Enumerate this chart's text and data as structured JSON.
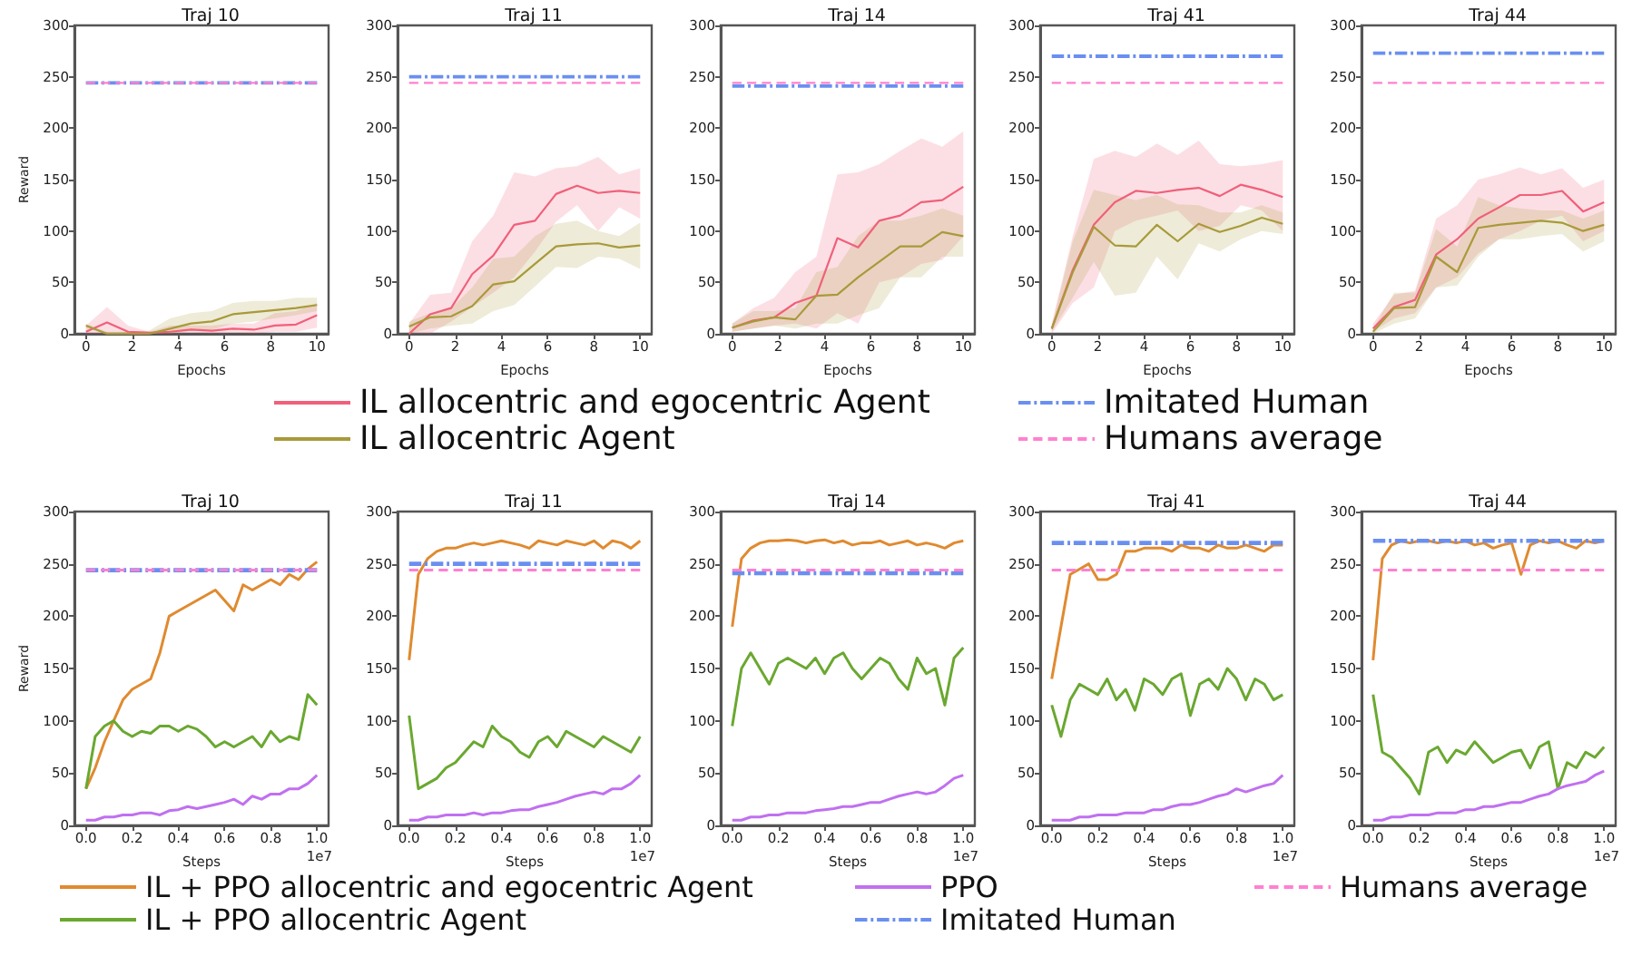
{
  "chart_data": [
    {
      "type": "line",
      "title": "Traj 10",
      "xlabel": "Epochs",
      "ylabel": "Reward",
      "x": [
        0,
        0.91,
        1.82,
        2.73,
        3.64,
        4.55,
        5.45,
        6.36,
        7.27,
        8.18,
        9.09,
        10
      ],
      "xlim": [
        -0.5,
        10.5
      ],
      "xticks": [
        0,
        2,
        4,
        6,
        8,
        10
      ],
      "ylim": [
        0,
        300
      ],
      "yticks": [
        0,
        50,
        100,
        150,
        200,
        250,
        300
      ],
      "grid": false,
      "marker": "none",
      "series": [
        {
          "color": "#f0607a",
          "values": [
            2,
            11,
            2,
            1,
            2,
            4,
            3,
            5,
            4,
            8,
            9,
            18
          ],
          "lower": [
            0,
            0,
            0,
            0,
            0,
            1,
            0,
            1,
            0,
            2,
            2,
            6
          ],
          "upper": [
            8,
            26,
            8,
            2,
            8,
            8,
            8,
            10,
            10,
            20,
            22,
            30
          ]
        },
        {
          "color": "#a89a3a",
          "values": [
            8,
            0,
            0,
            0,
            5,
            10,
            12,
            19,
            21,
            23,
            25,
            28
          ],
          "lower": [
            5,
            0,
            0,
            0,
            0,
            3,
            4,
            10,
            12,
            15,
            18,
            22
          ],
          "upper": [
            10,
            2,
            2,
            3,
            15,
            20,
            22,
            30,
            32,
            32,
            35,
            35
          ]
        },
        {
          "color": "#6a8ff0",
          "line_style": "dashdot",
          "x": [
            0,
            10
          ],
          "values": [
            244,
            244
          ]
        },
        {
          "color": "#ff80d0",
          "line_style": "dashed",
          "x": [
            0,
            10
          ],
          "values": [
            244,
            244
          ]
        }
      ]
    },
    {
      "type": "line",
      "title": "Traj 11",
      "xlabel": "Epochs",
      "x": [
        0,
        0.91,
        1.82,
        2.73,
        3.64,
        4.55,
        5.45,
        6.36,
        7.27,
        8.18,
        9.09,
        10
      ],
      "xlim": [
        -0.5,
        10.5
      ],
      "xticks": [
        0,
        2,
        4,
        6,
        8,
        10
      ],
      "ylim": [
        0,
        300
      ],
      "yticks": [
        0,
        50,
        100,
        150,
        200,
        250,
        300
      ],
      "grid": false,
      "marker": "none",
      "series": [
        {
          "color": "#f0607a",
          "values": [
            0,
            19,
            25,
            58,
            76,
            106,
            110,
            136,
            144,
            137,
            139,
            137
          ],
          "lower": [
            0,
            0,
            12,
            26,
            40,
            55,
            80,
            109,
            125,
            100,
            123,
            112
          ],
          "upper": [
            10,
            38,
            40,
            90,
            115,
            157,
            153,
            161,
            163,
            172,
            155,
            161
          ]
        },
        {
          "color": "#a89a3a",
          "values": [
            7,
            16,
            17,
            27,
            48,
            51,
            68,
            85,
            87,
            88,
            84,
            86
          ],
          "lower": [
            0,
            5,
            8,
            10,
            22,
            28,
            46,
            65,
            64,
            75,
            73,
            63
          ],
          "upper": [
            12,
            20,
            25,
            45,
            73,
            75,
            95,
            107,
            110,
            100,
            95,
            108
          ]
        },
        {
          "color": "#6a8ff0",
          "line_style": "dashdot",
          "x": [
            0,
            10
          ],
          "values": [
            250,
            250
          ]
        },
        {
          "color": "#ff80d0",
          "line_style": "dashed",
          "x": [
            0,
            10
          ],
          "values": [
            244,
            244
          ]
        }
      ]
    },
    {
      "type": "line",
      "title": "Traj 14",
      "xlabel": "Epochs",
      "x": [
        0,
        0.91,
        1.82,
        2.73,
        3.64,
        4.55,
        5.45,
        6.36,
        7.27,
        8.18,
        9.09,
        10
      ],
      "xlim": [
        -0.5,
        10.5
      ],
      "xticks": [
        0,
        2,
        4,
        6,
        8,
        10
      ],
      "ylim": [
        0,
        300
      ],
      "yticks": [
        0,
        50,
        100,
        150,
        200,
        250,
        300
      ],
      "grid": false,
      "marker": "none",
      "legend": "bottom",
      "series": [
        {
          "name": "IL allocentric and egocentric Agent",
          "color": "#f0607a",
          "values": [
            6,
            13,
            16,
            30,
            37,
            93,
            84,
            110,
            115,
            128,
            130,
            143
          ],
          "lower": [
            2,
            5,
            8,
            10,
            5,
            20,
            10,
            50,
            55,
            68,
            72,
            95
          ],
          "upper": [
            10,
            25,
            35,
            60,
            75,
            155,
            157,
            165,
            178,
            190,
            182,
            197
          ]
        },
        {
          "name": "IL allocentric Agent",
          "color": "#a89a3a",
          "values": [
            6,
            12,
            16,
            14,
            37,
            38,
            55,
            70,
            85,
            85,
            99,
            95
          ],
          "lower": [
            2,
            5,
            8,
            5,
            10,
            10,
            18,
            25,
            55,
            55,
            75,
            75
          ],
          "upper": [
            10,
            22,
            22,
            25,
            60,
            65,
            95,
            110,
            110,
            115,
            122,
            115
          ]
        },
        {
          "name": "Imitated Human",
          "color": "#6a8ff0",
          "line_style": "dashdot",
          "x": [
            0,
            10
          ],
          "values": [
            241,
            241
          ]
        },
        {
          "name": "Humans average",
          "color": "#ff80d0",
          "line_style": "dashed",
          "x": [
            0,
            10
          ],
          "values": [
            244,
            244
          ]
        }
      ]
    },
    {
      "type": "line",
      "title": "Traj 41",
      "xlabel": "Epochs",
      "x": [
        0,
        0.91,
        1.82,
        2.73,
        3.64,
        4.55,
        5.45,
        6.36,
        7.27,
        8.18,
        9.09,
        10
      ],
      "xlim": [
        -0.5,
        10.5
      ],
      "xticks": [
        0,
        2,
        4,
        6,
        8,
        10
      ],
      "ylim": [
        0,
        300
      ],
      "yticks": [
        0,
        50,
        100,
        150,
        200,
        250,
        300
      ],
      "grid": false,
      "marker": "none",
      "series": [
        {
          "color": "#f0607a",
          "values": [
            5,
            62,
            106,
            128,
            139,
            137,
            140,
            142,
            134,
            145,
            140,
            133
          ],
          "lower": [
            0,
            30,
            45,
            100,
            110,
            115,
            120,
            100,
            105,
            125,
            120,
            100
          ],
          "upper": [
            10,
            95,
            170,
            178,
            172,
            185,
            174,
            188,
            165,
            163,
            165,
            169
          ]
        },
        {
          "color": "#a89a3a",
          "values": [
            5,
            60,
            104,
            86,
            85,
            106,
            90,
            107,
            99,
            105,
            113,
            107
          ],
          "lower": [
            2,
            35,
            70,
            37,
            40,
            75,
            53,
            88,
            80,
            92,
            100,
            97
          ],
          "upper": [
            8,
            90,
            140,
            135,
            130,
            135,
            126,
            125,
            118,
            118,
            125,
            118
          ]
        },
        {
          "color": "#6a8ff0",
          "line_style": "dashdot",
          "x": [
            0,
            10
          ],
          "values": [
            270,
            270
          ]
        },
        {
          "color": "#ff80d0",
          "line_style": "dashed",
          "x": [
            0,
            10
          ],
          "values": [
            244,
            244
          ]
        }
      ]
    },
    {
      "type": "line",
      "title": "Traj 44",
      "xlabel": "Epochs",
      "x": [
        0,
        0.91,
        1.82,
        2.73,
        3.64,
        4.55,
        5.45,
        6.36,
        7.27,
        8.18,
        9.09,
        10
      ],
      "xlim": [
        -0.5,
        10.5
      ],
      "xticks": [
        0,
        2,
        4,
        6,
        8,
        10
      ],
      "ylim": [
        0,
        300
      ],
      "yticks": [
        0,
        50,
        100,
        150,
        200,
        250,
        300
      ],
      "grid": false,
      "marker": "none",
      "series": [
        {
          "color": "#f0607a",
          "values": [
            5,
            26,
            33,
            77,
            92,
            112,
            123,
            135,
            135,
            139,
            119,
            128
          ],
          "lower": [
            2,
            15,
            20,
            45,
            55,
            78,
            92,
            100,
            110,
            115,
            90,
            100
          ],
          "upper": [
            10,
            38,
            42,
            112,
            125,
            150,
            155,
            162,
            155,
            161,
            142,
            150
          ]
        },
        {
          "color": "#a89a3a",
          "values": [
            2,
            25,
            26,
            75,
            60,
            103,
            106,
            108,
            110,
            108,
            100,
            106
          ],
          "lower": [
            0,
            10,
            15,
            45,
            47,
            75,
            92,
            92,
            95,
            97,
            80,
            90
          ],
          "upper": [
            5,
            40,
            40,
            102,
            85,
            133,
            125,
            122,
            120,
            120,
            112,
            120
          ]
        },
        {
          "color": "#6a8ff0",
          "line_style": "dashdot",
          "x": [
            0,
            10
          ],
          "values": [
            273,
            273
          ]
        },
        {
          "color": "#ff80d0",
          "line_style": "dashed",
          "x": [
            0,
            10
          ],
          "values": [
            244,
            244
          ]
        }
      ]
    },
    {
      "type": "line",
      "title": "Traj 10",
      "xlabel": "Steps",
      "ylabel": "Reward",
      "annotations": [
        "1e7"
      ],
      "x": [
        0,
        0.04,
        0.08,
        0.12,
        0.16,
        0.2,
        0.24,
        0.28,
        0.32,
        0.36,
        0.4,
        0.44,
        0.48,
        0.52,
        0.56,
        0.6,
        0.64,
        0.68,
        0.72,
        0.76,
        0.8,
        0.84,
        0.88,
        0.92,
        0.96,
        1
      ],
      "xlim": [
        -0.05,
        1.05
      ],
      "xticks": [
        {
          "value": 0,
          "label": "0.0"
        },
        {
          "value": 0.2,
          "label": "0.2"
        },
        {
          "value": 0.4,
          "label": "0.4"
        },
        {
          "value": 0.6,
          "label": "0.6"
        },
        {
          "value": 0.8,
          "label": "0.8"
        },
        {
          "value": 1,
          "label": "1.0"
        }
      ],
      "ylim": [
        0,
        300
      ],
      "yticks": [
        0,
        50,
        100,
        150,
        200,
        250,
        300
      ],
      "grid": false,
      "marker": "none",
      "series": [
        {
          "color": "#e08a30",
          "values": [
            35,
            55,
            80,
            100,
            120,
            130,
            135,
            140,
            165,
            200,
            205,
            210,
            215,
            220,
            225,
            215,
            205,
            230,
            225,
            230,
            235,
            230,
            240,
            235,
            245,
            252
          ]
        },
        {
          "color": "#6aa830",
          "values": [
            35,
            85,
            95,
            100,
            90,
            85,
            90,
            88,
            95,
            95,
            90,
            95,
            92,
            85,
            75,
            80,
            75,
            80,
            85,
            75,
            90,
            80,
            85,
            82,
            125,
            115
          ]
        },
        {
          "color": "#c070f0",
          "values": [
            5,
            5,
            8,
            8,
            10,
            10,
            12,
            12,
            10,
            14,
            15,
            18,
            16,
            18,
            20,
            22,
            25,
            20,
            28,
            25,
            30,
            30,
            35,
            35,
            40,
            48
          ]
        },
        {
          "color": "#6a8ff0",
          "line_style": "dashdot",
          "x": [
            0,
            1
          ],
          "values": [
            244,
            244
          ]
        },
        {
          "color": "#ff80d0",
          "line_style": "dashed",
          "x": [
            0,
            1
          ],
          "values": [
            244,
            244
          ]
        }
      ]
    },
    {
      "type": "line",
      "title": "Traj 11",
      "xlabel": "Steps",
      "annotations": [
        "1e7"
      ],
      "x": [
        0,
        0.04,
        0.08,
        0.12,
        0.16,
        0.2,
        0.24,
        0.28,
        0.32,
        0.36,
        0.4,
        0.44,
        0.48,
        0.52,
        0.56,
        0.6,
        0.64,
        0.68,
        0.72,
        0.76,
        0.8,
        0.84,
        0.88,
        0.92,
        0.96,
        1
      ],
      "xlim": [
        -0.05,
        1.05
      ],
      "xticks": [
        {
          "value": 0,
          "label": "0.0"
        },
        {
          "value": 0.2,
          "label": "0.2"
        },
        {
          "value": 0.4,
          "label": "0.4"
        },
        {
          "value": 0.6,
          "label": "0.6"
        },
        {
          "value": 0.8,
          "label": "0.8"
        },
        {
          "value": 1,
          "label": "1.0"
        }
      ],
      "ylim": [
        0,
        300
      ],
      "yticks": [
        0,
        50,
        100,
        150,
        200,
        250,
        300
      ],
      "grid": false,
      "marker": "none",
      "series": [
        {
          "color": "#e08a30",
          "values": [
            158,
            240,
            255,
            262,
            265,
            265,
            268,
            270,
            268,
            270,
            272,
            270,
            268,
            265,
            272,
            270,
            268,
            272,
            270,
            268,
            272,
            265,
            272,
            270,
            265,
            272
          ]
        },
        {
          "color": "#6aa830",
          "values": [
            105,
            35,
            40,
            45,
            55,
            60,
            70,
            80,
            75,
            95,
            85,
            80,
            70,
            65,
            80,
            85,
            75,
            90,
            85,
            80,
            75,
            85,
            80,
            75,
            70,
            85
          ]
        },
        {
          "color": "#c070f0",
          "values": [
            5,
            5,
            8,
            8,
            10,
            10,
            10,
            12,
            10,
            12,
            12,
            14,
            15,
            15,
            18,
            20,
            22,
            25,
            28,
            30,
            32,
            30,
            35,
            35,
            40,
            48
          ]
        },
        {
          "color": "#6a8ff0",
          "line_style": "dashdot",
          "x": [
            0,
            1
          ],
          "values": [
            250,
            250
          ]
        },
        {
          "color": "#ff80d0",
          "line_style": "dashed",
          "x": [
            0,
            1
          ],
          "values": [
            244,
            244
          ]
        }
      ]
    },
    {
      "type": "line",
      "title": "Traj 14",
      "xlabel": "Steps",
      "annotations": [
        "1e7"
      ],
      "x": [
        0,
        0.04,
        0.08,
        0.12,
        0.16,
        0.2,
        0.24,
        0.28,
        0.32,
        0.36,
        0.4,
        0.44,
        0.48,
        0.52,
        0.56,
        0.6,
        0.64,
        0.68,
        0.72,
        0.76,
        0.8,
        0.84,
        0.88,
        0.92,
        0.96,
        1
      ],
      "xlim": [
        -0.05,
        1.05
      ],
      "xticks": [
        {
          "value": 0,
          "label": "0.0"
        },
        {
          "value": 0.2,
          "label": "0.2"
        },
        {
          "value": 0.4,
          "label": "0.4"
        },
        {
          "value": 0.6,
          "label": "0.6"
        },
        {
          "value": 0.8,
          "label": "0.8"
        },
        {
          "value": 1,
          "label": "1.0"
        }
      ],
      "ylim": [
        0,
        300
      ],
      "yticks": [
        0,
        50,
        100,
        150,
        200,
        250,
        300
      ],
      "grid": false,
      "marker": "none",
      "legend": "bottom",
      "series": [
        {
          "name": "IL + PPO allocentric and egocentric Agent",
          "color": "#e08a30",
          "values": [
            190,
            255,
            265,
            270,
            272,
            272,
            273,
            272,
            270,
            272,
            273,
            270,
            272,
            268,
            270,
            270,
            272,
            268,
            270,
            272,
            268,
            270,
            268,
            265,
            270,
            272
          ]
        },
        {
          "name": "IL + PPO allocentric Agent",
          "color": "#6aa830",
          "values": [
            95,
            150,
            165,
            150,
            135,
            155,
            160,
            155,
            150,
            160,
            145,
            160,
            165,
            150,
            140,
            150,
            160,
            155,
            140,
            130,
            160,
            145,
            150,
            115,
            160,
            170
          ]
        },
        {
          "name": "PPO",
          "color": "#c070f0",
          "values": [
            5,
            5,
            8,
            8,
            10,
            10,
            12,
            12,
            12,
            14,
            15,
            16,
            18,
            18,
            20,
            22,
            22,
            25,
            28,
            30,
            32,
            30,
            32,
            38,
            45,
            48
          ]
        },
        {
          "name": "Imitated Human",
          "color": "#6a8ff0",
          "line_style": "dashdot",
          "x": [
            0,
            1
          ],
          "values": [
            241,
            241
          ]
        },
        {
          "name": "Humans average",
          "color": "#ff80d0",
          "line_style": "dashed",
          "x": [
            0,
            1
          ],
          "values": [
            244,
            244
          ]
        }
      ]
    },
    {
      "type": "line",
      "title": "Traj 41",
      "xlabel": "Steps",
      "annotations": [
        "1e7"
      ],
      "x": [
        0,
        0.04,
        0.08,
        0.12,
        0.16,
        0.2,
        0.24,
        0.28,
        0.32,
        0.36,
        0.4,
        0.44,
        0.48,
        0.52,
        0.56,
        0.6,
        0.64,
        0.68,
        0.72,
        0.76,
        0.8,
        0.84,
        0.88,
        0.92,
        0.96,
        1
      ],
      "xlim": [
        -0.05,
        1.05
      ],
      "xticks": [
        {
          "value": 0,
          "label": "0.0"
        },
        {
          "value": 0.2,
          "label": "0.2"
        },
        {
          "value": 0.4,
          "label": "0.4"
        },
        {
          "value": 0.6,
          "label": "0.6"
        },
        {
          "value": 0.8,
          "label": "0.8"
        },
        {
          "value": 1,
          "label": "1.0"
        }
      ],
      "ylim": [
        0,
        300
      ],
      "yticks": [
        0,
        50,
        100,
        150,
        200,
        250,
        300
      ],
      "grid": false,
      "marker": "none",
      "series": [
        {
          "color": "#e08a30",
          "values": [
            140,
            190,
            240,
            245,
            250,
            235,
            235,
            240,
            262,
            262,
            265,
            265,
            265,
            262,
            268,
            265,
            265,
            262,
            268,
            265,
            265,
            268,
            265,
            262,
            268,
            268
          ]
        },
        {
          "color": "#6aa830",
          "values": [
            115,
            85,
            120,
            135,
            130,
            125,
            140,
            120,
            130,
            110,
            140,
            135,
            125,
            140,
            145,
            105,
            135,
            140,
            130,
            150,
            140,
            120,
            140,
            135,
            120,
            125
          ]
        },
        {
          "color": "#c070f0",
          "values": [
            5,
            5,
            5,
            8,
            8,
            10,
            10,
            10,
            12,
            12,
            12,
            15,
            15,
            18,
            20,
            20,
            22,
            25,
            28,
            30,
            35,
            32,
            35,
            38,
            40,
            48
          ]
        },
        {
          "color": "#6a8ff0",
          "line_style": "dashdot",
          "x": [
            0,
            1
          ],
          "values": [
            270,
            270
          ]
        },
        {
          "color": "#ff80d0",
          "line_style": "dashed",
          "x": [
            0,
            1
          ],
          "values": [
            244,
            244
          ]
        }
      ]
    },
    {
      "type": "line",
      "title": "Traj 44",
      "xlabel": "Steps",
      "annotations": [
        "1e7"
      ],
      "x": [
        0,
        0.04,
        0.08,
        0.12,
        0.16,
        0.2,
        0.24,
        0.28,
        0.32,
        0.36,
        0.4,
        0.44,
        0.48,
        0.52,
        0.56,
        0.6,
        0.64,
        0.68,
        0.72,
        0.76,
        0.8,
        0.84,
        0.88,
        0.92,
        0.96,
        1
      ],
      "xlim": [
        -0.05,
        1.05
      ],
      "xticks": [
        {
          "value": 0,
          "label": "0.0"
        },
        {
          "value": 0.2,
          "label": "0.2"
        },
        {
          "value": 0.4,
          "label": "0.4"
        },
        {
          "value": 0.6,
          "label": "0.6"
        },
        {
          "value": 0.8,
          "label": "0.8"
        },
        {
          "value": 1,
          "label": "1.0"
        }
      ],
      "ylim": [
        0,
        300
      ],
      "yticks": [
        0,
        50,
        100,
        150,
        200,
        250,
        300
      ],
      "grid": false,
      "marker": "none",
      "series": [
        {
          "color": "#e08a30",
          "values": [
            158,
            255,
            268,
            272,
            270,
            272,
            272,
            270,
            272,
            270,
            272,
            268,
            270,
            265,
            268,
            270,
            240,
            268,
            272,
            270,
            272,
            268,
            265,
            272,
            270,
            272
          ]
        },
        {
          "color": "#6aa830",
          "values": [
            125,
            70,
            65,
            55,
            45,
            30,
            70,
            75,
            60,
            72,
            68,
            80,
            70,
            60,
            65,
            70,
            72,
            55,
            75,
            80,
            35,
            60,
            55,
            70,
            65,
            75
          ]
        },
        {
          "color": "#c070f0",
          "values": [
            5,
            5,
            8,
            8,
            10,
            10,
            10,
            12,
            12,
            12,
            15,
            15,
            18,
            18,
            20,
            22,
            22,
            25,
            28,
            30,
            35,
            38,
            40,
            42,
            48,
            52
          ]
        },
        {
          "color": "#6a8ff0",
          "line_style": "dashdot",
          "x": [
            0,
            1
          ],
          "values": [
            272,
            272
          ]
        },
        {
          "color": "#ff80d0",
          "line_style": "dashed",
          "x": [
            0,
            1
          ],
          "values": [
            244,
            244
          ]
        }
      ]
    }
  ]
}
